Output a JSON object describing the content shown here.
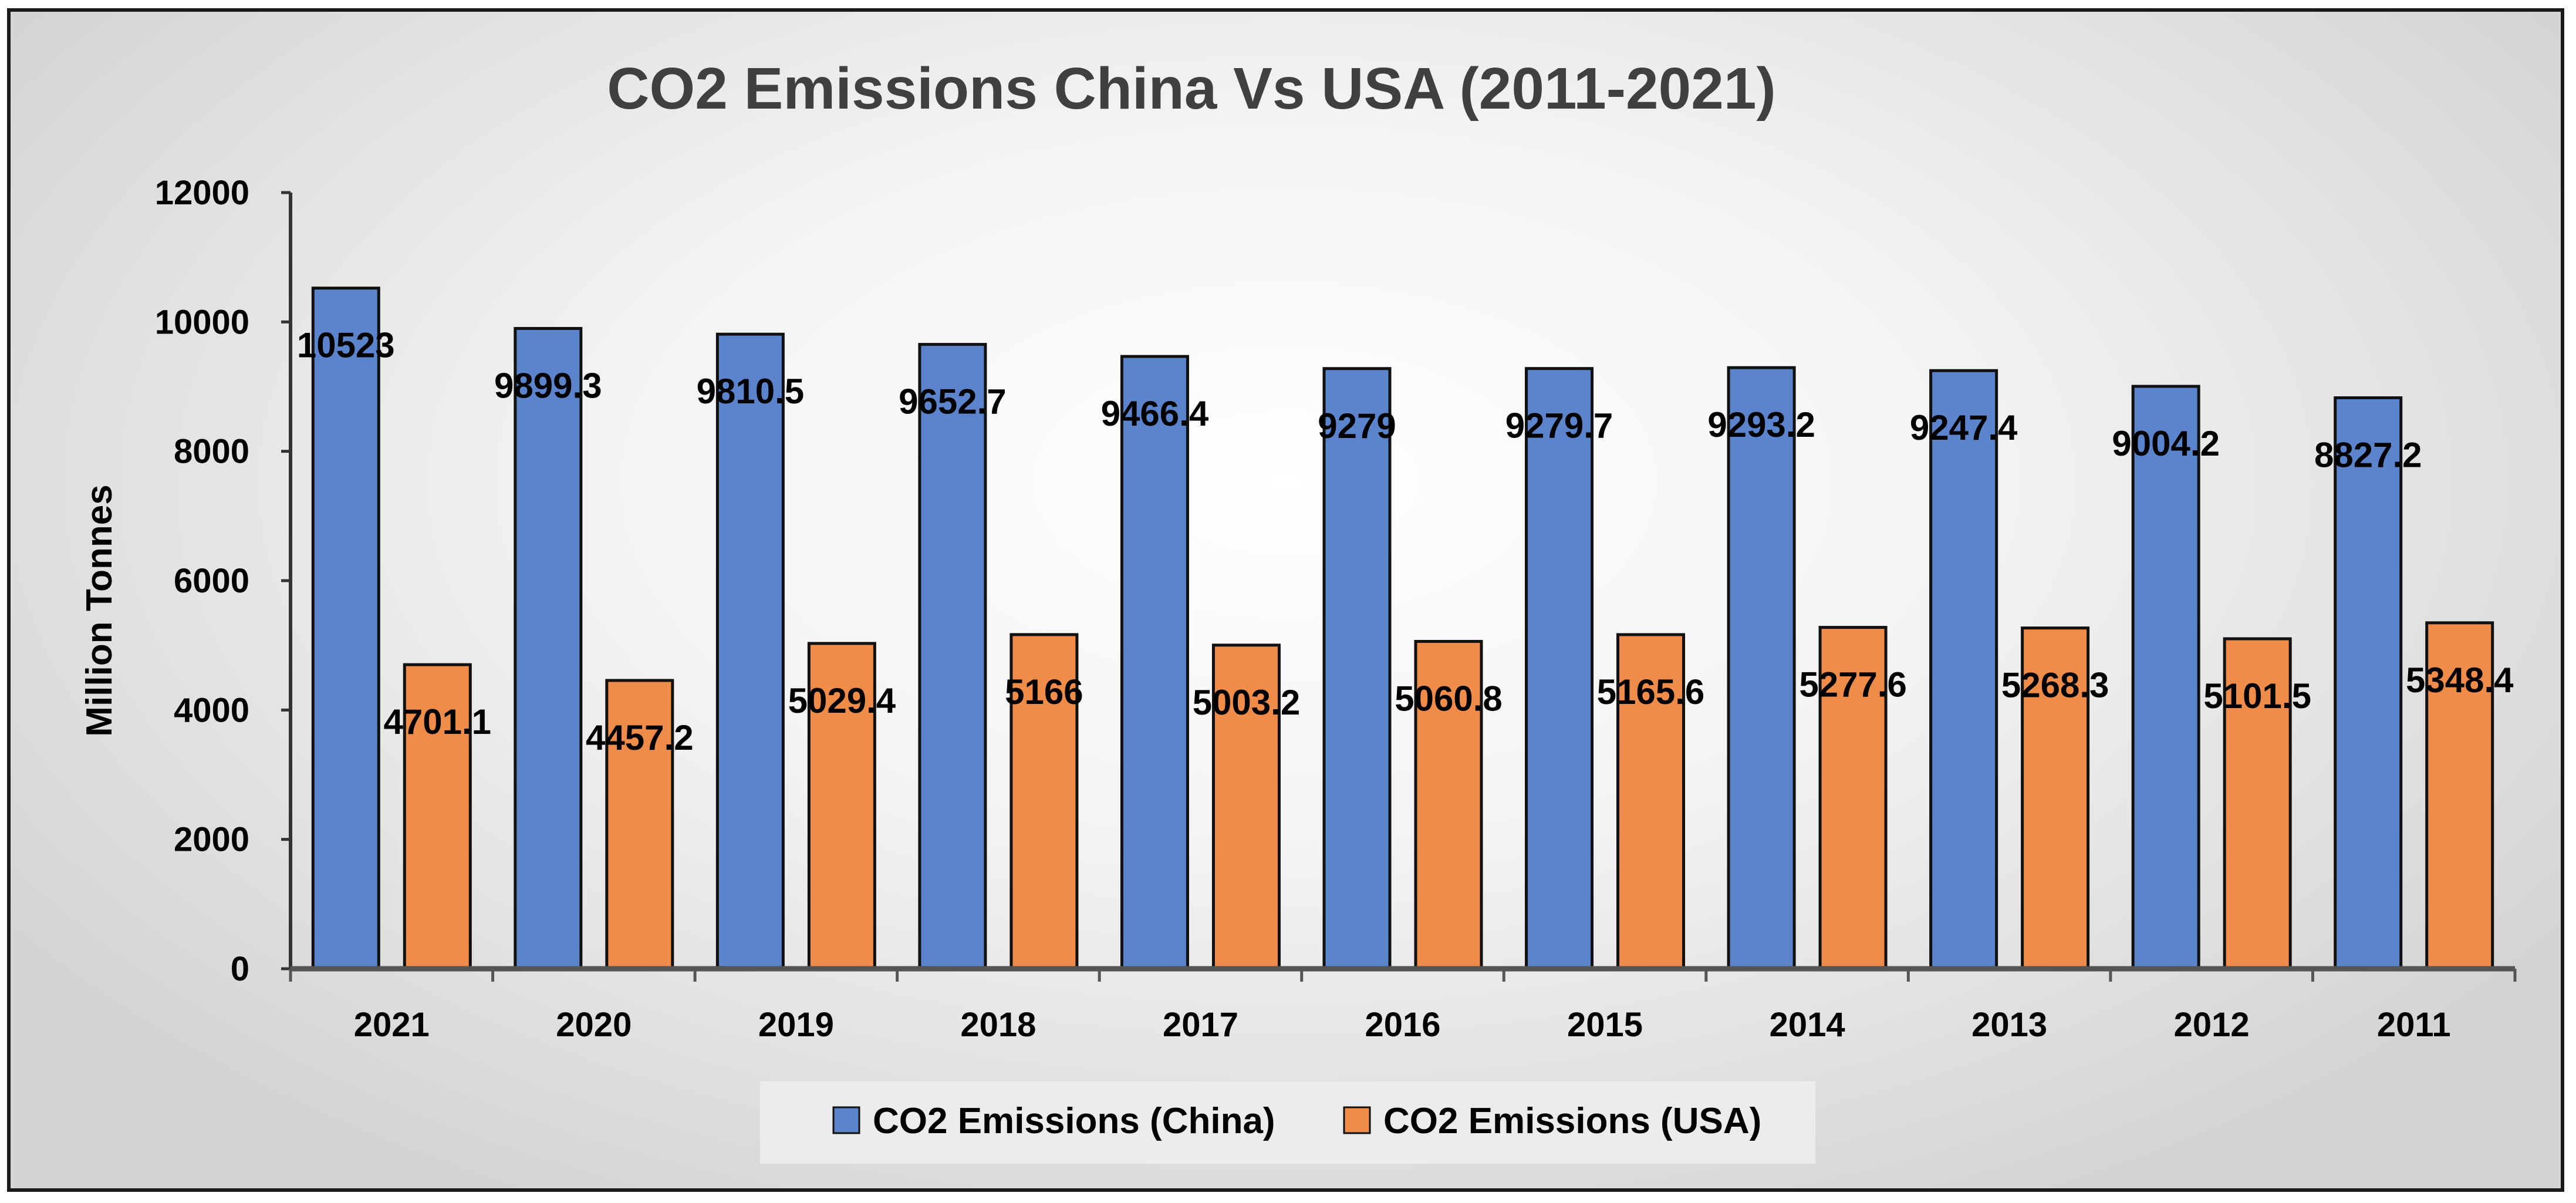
{
  "chart_data": {
    "type": "bar",
    "title": "CO2 Emissions China Vs USA (2011-2021)",
    "xlabel": "",
    "ylabel": "Million Tonnes",
    "ylim": [
      0,
      12000
    ],
    "yticks": [
      0,
      2000,
      4000,
      6000,
      8000,
      10000,
      12000
    ],
    "categories": [
      "2021",
      "2020",
      "2019",
      "2018",
      "2017",
      "2016",
      "2015",
      "2014",
      "2013",
      "2012",
      "2011"
    ],
    "series": [
      {
        "name": "CO2 Emissions (China)",
        "color": "#5b84cc",
        "values": [
          10523,
          9899.3,
          9810.5,
          9652.7,
          9466.4,
          9279,
          9279.7,
          9293.2,
          9247.4,
          9004.2,
          8827.2
        ],
        "labels": [
          "10523",
          "9899.3",
          "9810.5",
          "9652.7",
          "9466.4",
          "9279",
          "9279.7",
          "9293.2",
          "9247.4",
          "9004.2",
          "8827.2"
        ]
      },
      {
        "name": "CO2 Emissions (USA)",
        "color": "#ef8c4a",
        "values": [
          4701.1,
          4457.2,
          5029.4,
          5166,
          5003.2,
          5060.8,
          5165.6,
          5277.6,
          5268.3,
          5101.5,
          5348.4
        ],
        "labels": [
          "4701.1",
          "4457.2",
          "5029.4",
          "5166",
          "5003.2",
          "5060.8",
          "5165.6",
          "5277.6",
          "5268.3",
          "5101.5",
          "5348.4"
        ]
      }
    ],
    "grid": false,
    "legend": "bottom"
  }
}
